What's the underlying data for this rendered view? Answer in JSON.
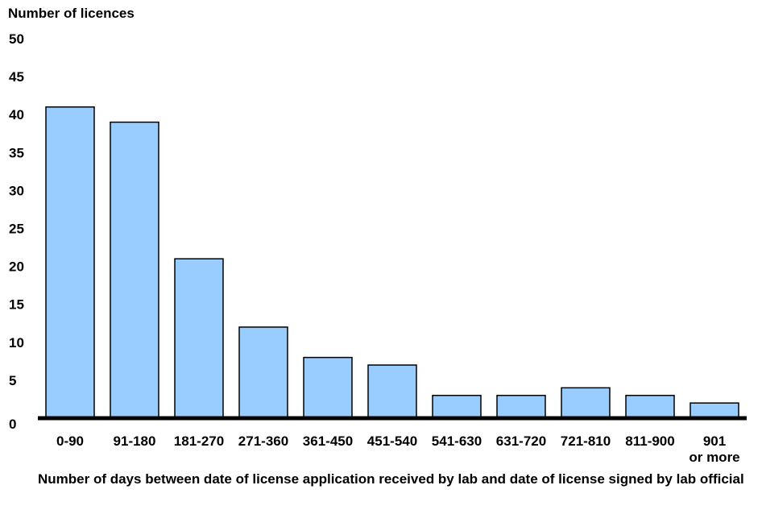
{
  "chart_data": {
    "type": "bar",
    "ylabel": "Number of licences",
    "xlabel": "Number of days between date of license application received by lab and date of license signed by lab official",
    "ylim": [
      0,
      50
    ],
    "yticks": [
      0,
      5,
      10,
      15,
      20,
      25,
      30,
      35,
      40,
      45,
      50
    ],
    "categories": [
      "0-90",
      "91-180",
      "181-270",
      "271-360",
      "361-450",
      "451-540",
      "541-630",
      "631-720",
      "721-810",
      "811-900",
      "901\nor more"
    ],
    "values": [
      41,
      39,
      21,
      12,
      8,
      7,
      3,
      3,
      4,
      3,
      2
    ],
    "grid": false,
    "legend": "none",
    "colors": {
      "bar_fill": "#99ccff",
      "bar_stroke": "#000000",
      "axis": "#000000"
    }
  }
}
